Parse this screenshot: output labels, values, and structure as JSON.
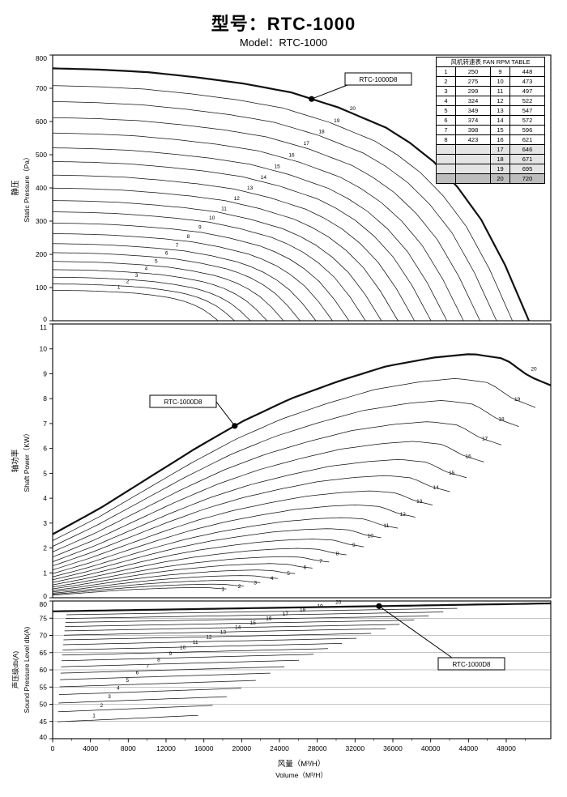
{
  "title": {
    "model_cn": "型号：RTC-1000",
    "model_en": "Model：RTC-1000"
  },
  "rpm_table": {
    "header": "风机转速表 FAN RPM TABLE",
    "rows": [
      [
        "1",
        "250",
        "9",
        "448"
      ],
      [
        "2",
        "275",
        "10",
        "473"
      ],
      [
        "3",
        "299",
        "11",
        "497"
      ],
      [
        "4",
        "324",
        "12",
        "522"
      ],
      [
        "5",
        "349",
        "13",
        "547"
      ],
      [
        "6",
        "374",
        "14",
        "572"
      ],
      [
        "7",
        "398",
        "15",
        "596"
      ],
      [
        "8",
        "423",
        "16",
        "621"
      ],
      [
        "",
        "",
        "17",
        "646"
      ],
      [
        "",
        "",
        "18",
        "671"
      ],
      [
        "",
        "",
        "19",
        "695"
      ],
      [
        "",
        "",
        "20",
        "720"
      ]
    ],
    "shaded_rows": [
      8,
      9,
      10
    ],
    "highlight_row": 11
  },
  "axes": {
    "x": {
      "ticks": [
        0,
        4000,
        8000,
        12000,
        16000,
        20000,
        24000,
        28000,
        32000,
        36000,
        40000,
        44000,
        48000
      ],
      "title_cn": "风量（M³/H）",
      "title_en": "Volume（M³/H）"
    },
    "y_static": {
      "title_cn": "静压",
      "title_en": "Static Pressure（Pa）",
      "min": 0,
      "max": 800,
      "step": 100
    },
    "y_power": {
      "title_cn": "轴功率",
      "title_en": "Shaft Power（KW）",
      "min": 0,
      "max": 11,
      "step": 1
    },
    "y_sound": {
      "title_cn": "声压级db(A)",
      "title_en": "Sound Pressure Level db(A)",
      "min": 40,
      "max": 80,
      "step": 5
    }
  },
  "chart_data": {
    "type": "line",
    "description": "Fan performance curves for 20 fan speeds: static pressure (Pa), shaft power (KW) and sound pressure level dB(A) versus air volume (M³/H). Curve 20 (720 RPM) is the bold RTC-1000D8 duty curve.",
    "fans": [
      {
        "n": 1,
        "rpm": 250
      },
      {
        "n": 2,
        "rpm": 275
      },
      {
        "n": 3,
        "rpm": 299
      },
      {
        "n": 4,
        "rpm": 324
      },
      {
        "n": 5,
        "rpm": 349
      },
      {
        "n": 6,
        "rpm": 374
      },
      {
        "n": 7,
        "rpm": 398
      },
      {
        "n": 8,
        "rpm": 423
      },
      {
        "n": 9,
        "rpm": 448
      },
      {
        "n": 10,
        "rpm": 473
      },
      {
        "n": 11,
        "rpm": 497
      },
      {
        "n": 12,
        "rpm": 522
      },
      {
        "n": 13,
        "rpm": 547
      },
      {
        "n": 14,
        "rpm": 572
      },
      {
        "n": 15,
        "rpm": 596
      },
      {
        "n": 16,
        "rpm": 621
      },
      {
        "n": 17,
        "rpm": 646
      },
      {
        "n": 18,
        "rpm": 671
      },
      {
        "n": 19,
        "rpm": 695
      },
      {
        "n": 20,
        "rpm": 720
      }
    ],
    "ref": {
      "rpm": 720,
      "q_max": 50400,
      "p0": 760,
      "q_view_max": 52700
    },
    "static_shape": [
      [
        0,
        1
      ],
      [
        0.1,
        0.995
      ],
      [
        0.2,
        0.985
      ],
      [
        0.3,
        0.965
      ],
      [
        0.4,
        0.94
      ],
      [
        0.5,
        0.905
      ],
      [
        0.6,
        0.845
      ],
      [
        0.7,
        0.765
      ],
      [
        0.75,
        0.705
      ],
      [
        0.8,
        0.63
      ],
      [
        0.85,
        0.53
      ],
      [
        0.9,
        0.4
      ],
      [
        0.95,
        0.22
      ],
      [
        1,
        0
      ]
    ],
    "power_shape": [
      [
        0,
        2.55
      ],
      [
        0.1,
        3.6
      ],
      [
        0.2,
        4.8
      ],
      [
        0.3,
        6.0
      ],
      [
        0.4,
        7.1
      ],
      [
        0.5,
        8.0
      ],
      [
        0.6,
        8.7
      ],
      [
        0.7,
        9.3
      ],
      [
        0.8,
        9.65
      ],
      [
        0.88,
        9.8
      ],
      [
        0.95,
        9.6
      ],
      [
        1.0,
        8.9
      ],
      [
        1.05,
        8.5
      ]
    ],
    "sound_law": {
      "L_ref": 77,
      "exponent": 70,
      "rise_db": 2.2
    },
    "highlight_curve": 20,
    "marker_label": "RTC-1000D8",
    "markers": [
      {
        "plot": "static",
        "q": 27400
      },
      {
        "plot": "power",
        "q": 19270
      },
      {
        "plot": "sound",
        "q": 34540
      }
    ]
  }
}
